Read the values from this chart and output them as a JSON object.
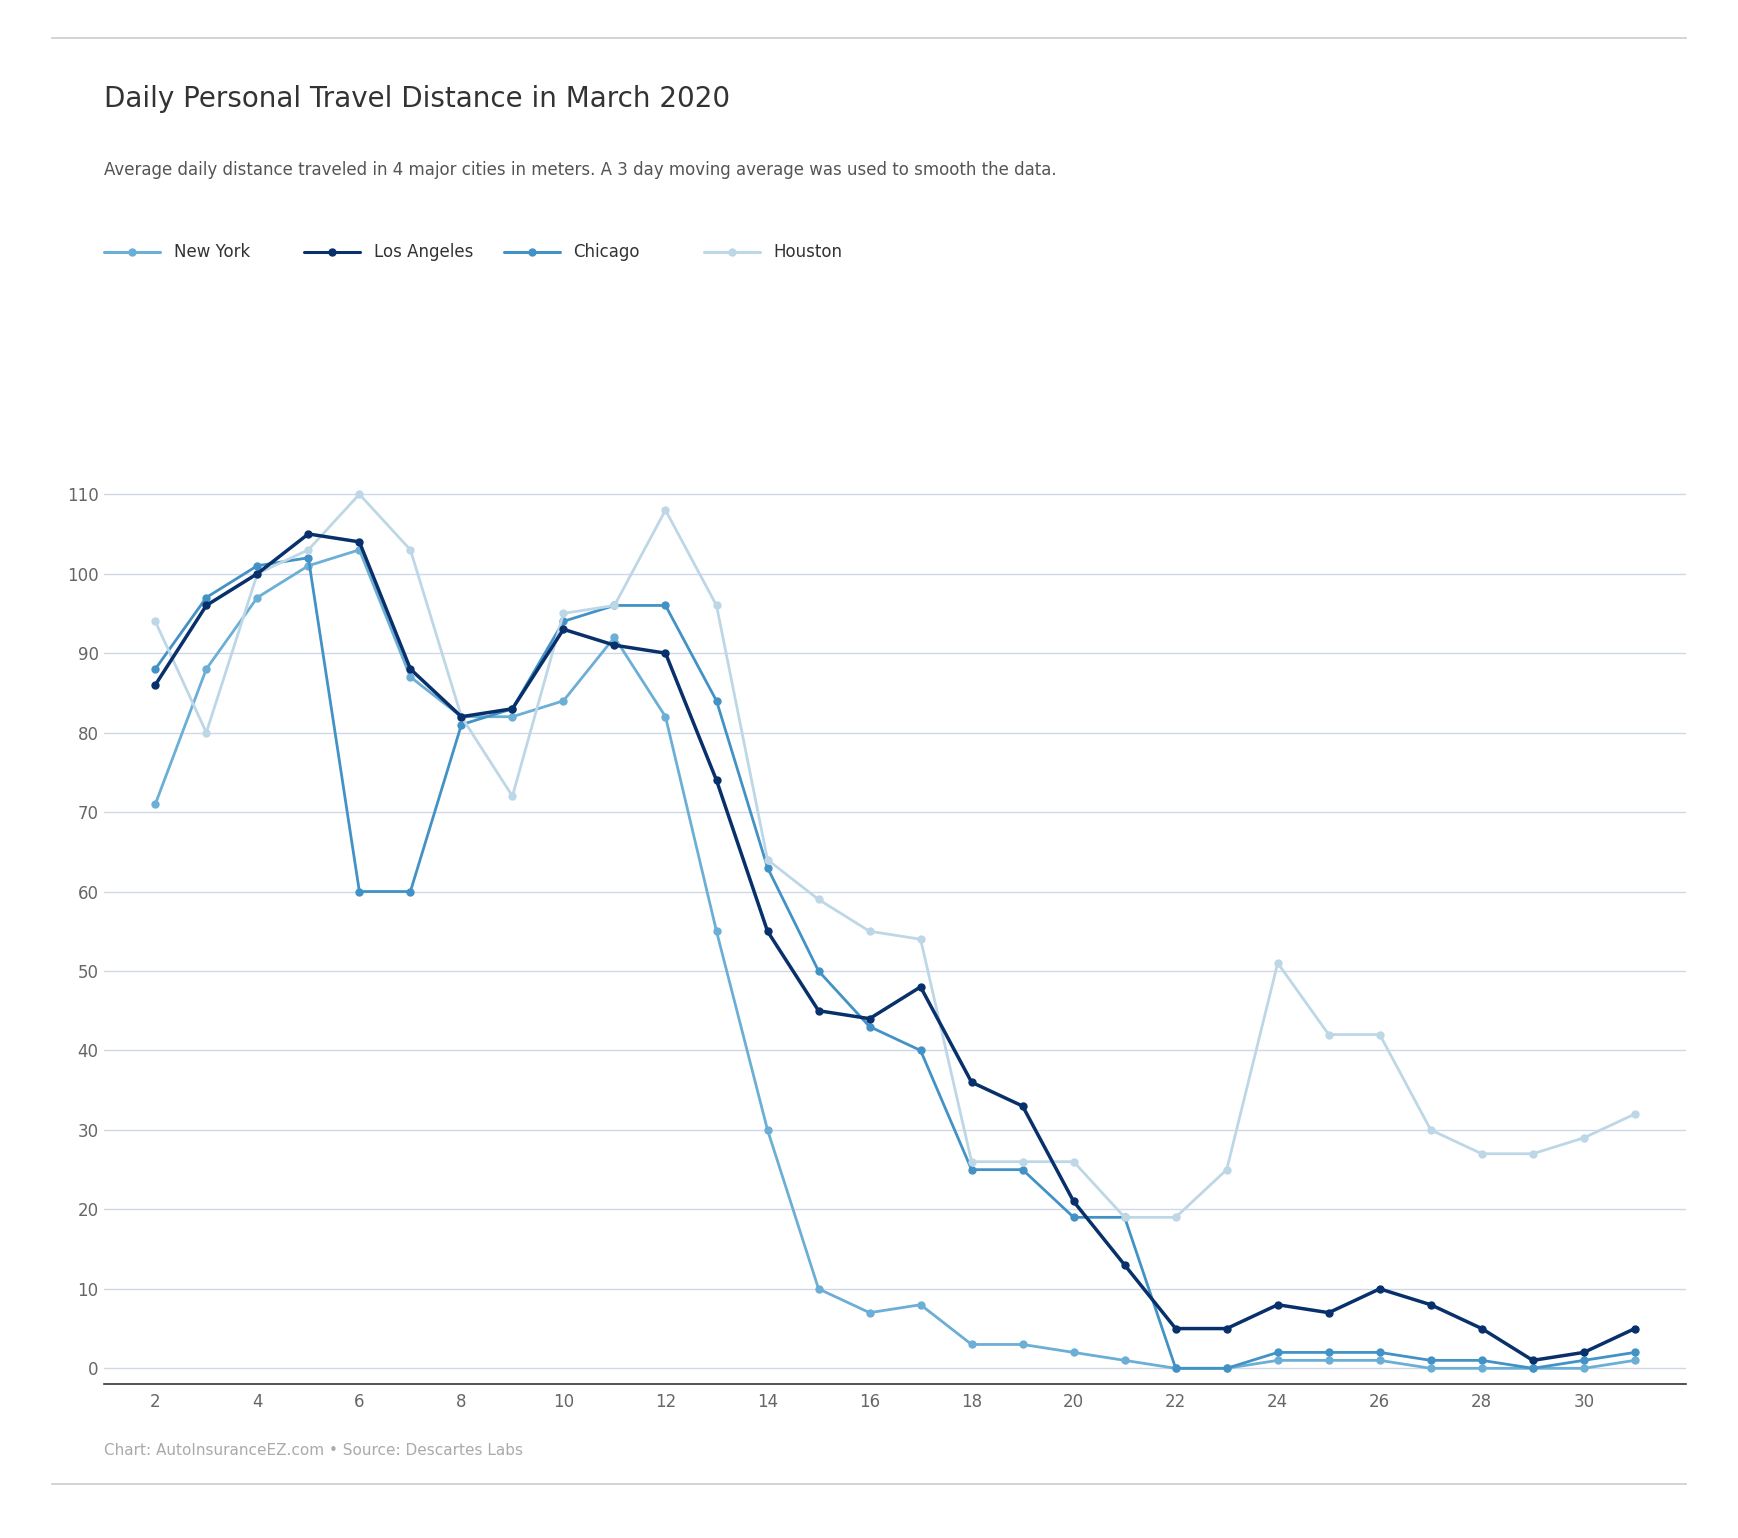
{
  "title": "Daily Personal Travel Distance in March 2020",
  "subtitle": "Average daily distance traveled in 4 major cities in meters. A 3 day moving average was used to smooth the data.",
  "footer": "Chart: AutoInsuranceEZ.com • Source: Descartes Labs",
  "x_ticks": [
    2,
    4,
    6,
    8,
    10,
    12,
    14,
    16,
    18,
    20,
    22,
    24,
    26,
    28,
    30
  ],
  "y_ticks": [
    0,
    10,
    20,
    30,
    40,
    50,
    60,
    70,
    80,
    90,
    100,
    110
  ],
  "ylim": [
    -2,
    118
  ],
  "xlim": [
    1,
    32
  ],
  "series": {
    "New York": {
      "color": "#6baed6",
      "linewidth": 2.0,
      "marker": "o",
      "markersize": 5,
      "x": [
        2,
        3,
        4,
        5,
        6,
        7,
        8,
        9,
        10,
        11,
        12,
        13,
        14,
        15,
        16,
        17,
        18,
        19,
        20,
        21,
        22,
        23,
        24,
        25,
        26,
        27,
        28,
        29,
        30,
        31
      ],
      "y": [
        71,
        88,
        97,
        101,
        103,
        87,
        82,
        82,
        84,
        92,
        82,
        55,
        30,
        10,
        7,
        8,
        3,
        3,
        2,
        1,
        0,
        0,
        1,
        1,
        1,
        0,
        0,
        0,
        0,
        1
      ]
    },
    "Los Angeles": {
      "color": "#08306b",
      "linewidth": 2.5,
      "marker": "o",
      "markersize": 5,
      "x": [
        2,
        3,
        4,
        5,
        6,
        7,
        8,
        9,
        10,
        11,
        12,
        13,
        14,
        15,
        16,
        17,
        18,
        19,
        20,
        21,
        22,
        23,
        24,
        25,
        26,
        27,
        28,
        29,
        30,
        31
      ],
      "y": [
        86,
        96,
        100,
        105,
        104,
        88,
        82,
        83,
        93,
        91,
        90,
        74,
        55,
        45,
        44,
        48,
        36,
        33,
        21,
        13,
        5,
        5,
        8,
        7,
        10,
        8,
        5,
        1,
        2,
        5
      ]
    },
    "Chicago": {
      "color": "#4292c6",
      "linewidth": 2.0,
      "marker": "o",
      "markersize": 5,
      "x": [
        2,
        3,
        4,
        5,
        6,
        7,
        8,
        9,
        10,
        11,
        12,
        13,
        14,
        15,
        16,
        17,
        18,
        19,
        20,
        21,
        22,
        23,
        24,
        25,
        26,
        27,
        28,
        29,
        30,
        31
      ],
      "y": [
        88,
        97,
        101,
        102,
        60,
        60,
        81,
        83,
        94,
        96,
        96,
        84,
        63,
        50,
        43,
        40,
        25,
        25,
        19,
        19,
        0,
        0,
        2,
        2,
        2,
        1,
        1,
        0,
        1,
        2
      ]
    },
    "Houston": {
      "color": "#bdd7e7",
      "linewidth": 2.0,
      "marker": "o",
      "markersize": 5,
      "x": [
        2,
        3,
        4,
        5,
        6,
        7,
        8,
        9,
        10,
        11,
        12,
        13,
        14,
        15,
        16,
        17,
        18,
        19,
        20,
        21,
        22,
        23,
        24,
        25,
        26,
        27,
        28,
        29,
        30,
        31
      ],
      "y": [
        94,
        80,
        100,
        103,
        110,
        103,
        82,
        72,
        95,
        96,
        108,
        96,
        64,
        59,
        55,
        54,
        26,
        26,
        26,
        19,
        19,
        25,
        51,
        42,
        42,
        30,
        27,
        27,
        29,
        32
      ]
    }
  },
  "background_color": "#ffffff",
  "grid_color": "#d0d8e8",
  "title_fontsize": 20,
  "subtitle_fontsize": 12,
  "footer_fontsize": 11,
  "tick_fontsize": 12,
  "legend_fontsize": 12,
  "title_color": "#333333",
  "subtitle_color": "#555555",
  "footer_color": "#aaaaaa",
  "tick_color": "#666666"
}
